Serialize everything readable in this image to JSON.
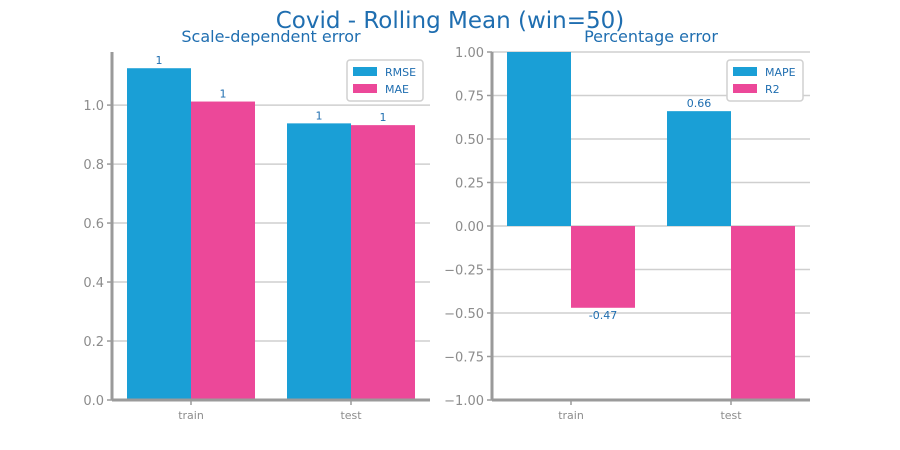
{
  "title": "Covid - Rolling Mean (win=50)",
  "colors": {
    "series_a": "#1a9fd6",
    "series_b": "#ec4899",
    "axis": "#9a9a9a",
    "grid": "#cfcfcf",
    "text": "#1f6eb0"
  },
  "chart_data": [
    {
      "type": "bar",
      "title": "Scale-dependent error",
      "categories": [
        "train",
        "test"
      ],
      "series": [
        {
          "name": "RMSE",
          "values": [
            1.125,
            0.938
          ],
          "labels": [
            "1",
            "1"
          ]
        },
        {
          "name": "MAE",
          "values": [
            1.012,
            0.932
          ],
          "labels": [
            "1",
            "1"
          ]
        }
      ],
      "ylim": [
        0,
        1.18
      ],
      "yticks": [
        0.0,
        0.2,
        0.4,
        0.6,
        0.8,
        1.0
      ],
      "ytick_labels": [
        "0.0",
        "0.2",
        "0.4",
        "0.6",
        "0.8",
        "1.0"
      ],
      "grid": true,
      "legend": "top-right"
    },
    {
      "type": "bar",
      "title": "Percentage error",
      "categories": [
        "train",
        "test"
      ],
      "series": [
        {
          "name": "MAPE",
          "values": [
            1.0,
            0.66
          ],
          "labels": [
            "",
            "0.66"
          ]
        },
        {
          "name": "R2",
          "values": [
            -0.47,
            -1.0
          ],
          "labels": [
            "-0.47",
            ""
          ]
        }
      ],
      "ylim": [
        -1.0,
        1.0
      ],
      "yticks": [
        -1.0,
        -0.75,
        -0.5,
        -0.25,
        0.0,
        0.25,
        0.5,
        0.75,
        1.0
      ],
      "ytick_labels": [
        "−1.00",
        "−0.75",
        "−0.50",
        "−0.25",
        "0.00",
        "0.25",
        "0.50",
        "0.75",
        "1.00"
      ],
      "grid": true,
      "legend": "top-right"
    }
  ]
}
